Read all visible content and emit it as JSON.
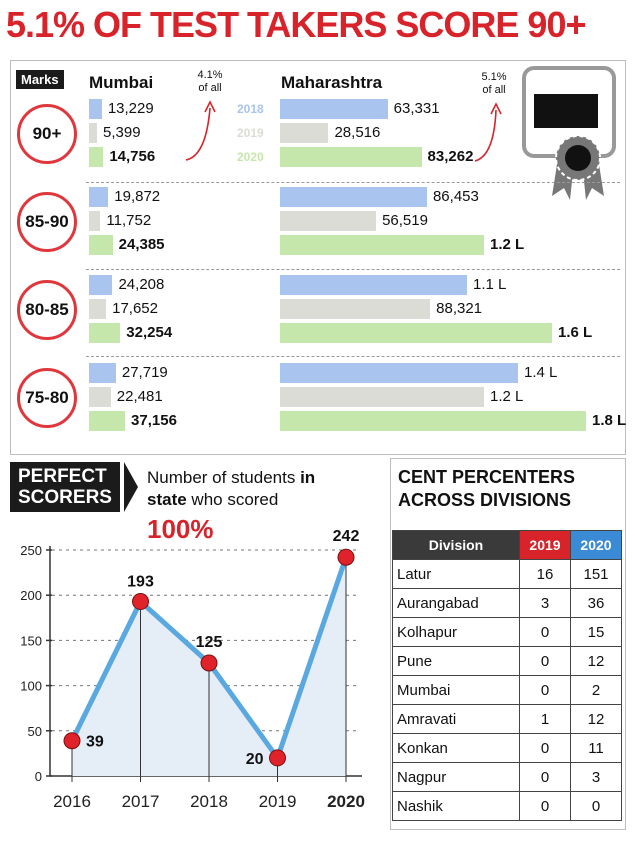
{
  "title": "5.1% OF TEST TAKERS SCORE 90+",
  "marks_label": "Marks",
  "headers": {
    "mumbai": "Mumbai",
    "maharashtra": "Maharashtra"
  },
  "notes": {
    "mumbai": "4.1%\nof all",
    "maharashtra": "5.1%\nof all"
  },
  "colors": {
    "y2018": "#a9c4ee",
    "y2019": "#dcdcd6",
    "y2020": "#c6e7ab",
    "accent": "#d8232a",
    "line": "#5aa8e0"
  },
  "chart_data": [
    {
      "type": "bar",
      "title": "5.1% OF TEST TAKERS SCORE 90+",
      "series_years": [
        "2018",
        "2019",
        "2020"
      ],
      "groups": [
        {
          "label": "90+",
          "mumbai": [
            13229,
            5399,
            14756
          ],
          "mumbai_labels": [
            "13,229",
            "5,399",
            "14,756"
          ],
          "maharashtra": [
            63331,
            28516,
            83262
          ],
          "maharashtra_labels": [
            "63,331",
            "28,516",
            "83,262"
          ]
        },
        {
          "label": "85-90",
          "mumbai": [
            19872,
            11752,
            24385
          ],
          "mumbai_labels": [
            "19,872",
            "11,752",
            "24,385"
          ],
          "maharashtra": [
            86453,
            56519,
            120000
          ],
          "maharashtra_labels": [
            "86,453",
            "56,519",
            "1.2 L"
          ]
        },
        {
          "label": "80-85",
          "mumbai": [
            24208,
            17652,
            32254
          ],
          "mumbai_labels": [
            "24,208",
            "17,652",
            "32,254"
          ],
          "maharashtra": [
            110000,
            88321,
            160000
          ],
          "maharashtra_labels": [
            "1.1 L",
            "88,321",
            "1.6 L"
          ]
        },
        {
          "label": "75-80",
          "mumbai": [
            27719,
            22481,
            37156
          ],
          "mumbai_labels": [
            "27,719",
            "22,481",
            "37,156"
          ],
          "maharashtra": [
            140000,
            120000,
            180000
          ],
          "maharashtra_labels": [
            "1.4 L",
            "1.2 L",
            "1.8 L"
          ]
        }
      ]
    },
    {
      "type": "line",
      "title": "Number of students in state who scored 100%",
      "x": [
        "2016",
        "2017",
        "2018",
        "2019",
        "2020"
      ],
      "y": [
        39,
        193,
        125,
        20,
        242
      ],
      "yticks": [
        0,
        50,
        100,
        150,
        200,
        250
      ],
      "ylim": [
        0,
        250
      ]
    },
    {
      "type": "table",
      "title": "CENT PERCENTERS ACROSS DIVISIONS",
      "columns": [
        "Division",
        "2019",
        "2020"
      ],
      "rows": [
        [
          "Latur",
          "16",
          "151"
        ],
        [
          "Aurangabad",
          "3",
          "36"
        ],
        [
          "Kolhapur",
          "0",
          "15"
        ],
        [
          "Pune",
          "0",
          "12"
        ],
        [
          "Mumbai",
          "0",
          "2"
        ],
        [
          "Amravati",
          "1",
          "12"
        ],
        [
          "Konkan",
          "0",
          "11"
        ],
        [
          "Nagpur",
          "0",
          "3"
        ],
        [
          "Nashik",
          "0",
          "0"
        ]
      ]
    }
  ],
  "perfect": {
    "badge_line1": "PERFECT",
    "badge_line2": "SCORERS",
    "subtitle_a": "Number of students ",
    "subtitle_b": "in",
    "subtitle_c": "state",
    "subtitle_d": " who scored",
    "big": "100%"
  },
  "cent": {
    "title_line1": "CENT PERCENTERS",
    "title_line2": "ACROSS DIVISIONS",
    "head_colors": [
      "#3a3a3a",
      "#d8232a",
      "#3a8ad6"
    ]
  }
}
